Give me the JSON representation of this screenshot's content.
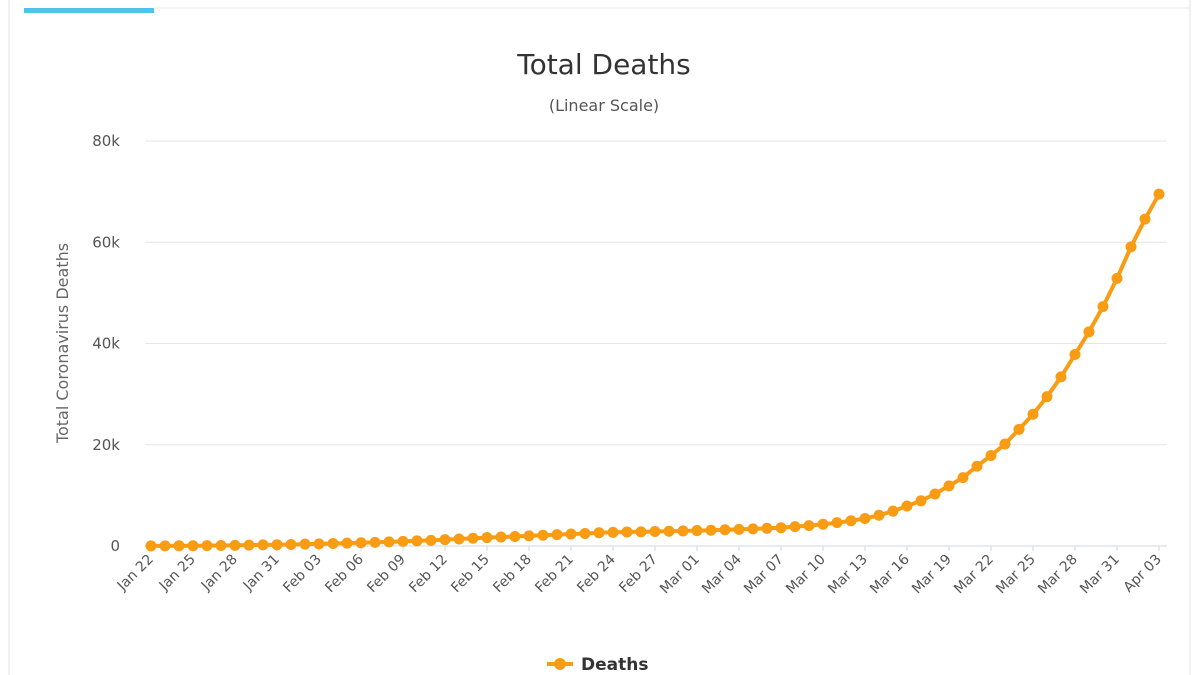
{
  "colors": {
    "accent_bar": "#4fc3e8",
    "series": "#f89c14",
    "grid": "#e6e6e6",
    "axis": "#cfd8e3"
  },
  "chart_data": {
    "type": "line",
    "title": "Total Deaths",
    "subtitle": "(Linear Scale)",
    "xlabel": "",
    "ylabel": "Total Coronavirus Deaths",
    "ylim": [
      0,
      80000
    ],
    "yticks": [
      0,
      20000,
      40000,
      60000,
      80000
    ],
    "ytick_labels": [
      "0",
      "20k",
      "40k",
      "60k",
      "80k"
    ],
    "xtick_labels": [
      "Jan 22",
      "Jan 25",
      "Jan 28",
      "Jan 31",
      "Feb 03",
      "Feb 06",
      "Feb 09",
      "Feb 12",
      "Feb 15",
      "Feb 18",
      "Feb 21",
      "Feb 24",
      "Feb 27",
      "Mar 01",
      "Mar 04",
      "Mar 07",
      "Mar 10",
      "Mar 13",
      "Mar 16",
      "Mar 19",
      "Mar 22",
      "Mar 25",
      "Mar 28",
      "Mar 31",
      "Apr 03"
    ],
    "x_start": "Jan 22",
    "x_end": "Apr 05",
    "grid": true,
    "legend": "bottom-center",
    "series": [
      {
        "name": "Deaths",
        "values": [
          17,
          25,
          41,
          56,
          80,
          106,
          132,
          170,
          213,
          259,
          304,
          362,
          426,
          492,
          565,
          638,
          724,
          813,
          910,
          1018,
          1115,
          1261,
          1383,
          1526,
          1669,
          1775,
          1873,
          2009,
          2126,
          2247,
          2360,
          2460,
          2618,
          2699,
          2763,
          2800,
          2858,
          2923,
          2977,
          3050,
          3117,
          3202,
          3285,
          3387,
          3494,
          3599,
          3827,
          4025,
          4296,
          4626,
          4981,
          5428,
          6066,
          6879,
          7901,
          8926,
          10283,
          11875,
          13510,
          15758,
          17870,
          20145,
          23036,
          26020,
          29495,
          33409,
          37826,
          42307,
          47280,
          52868,
          59098,
          64560,
          69500
        ]
      }
    ]
  }
}
